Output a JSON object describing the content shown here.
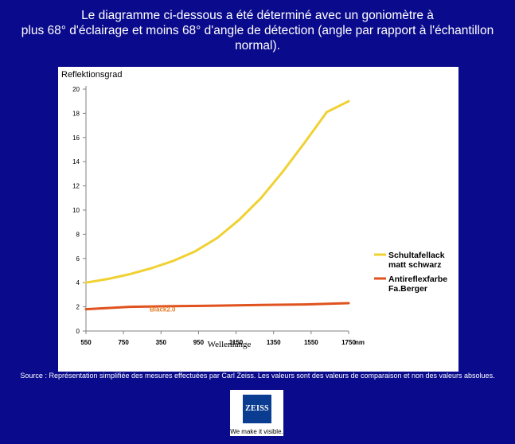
{
  "header": {
    "line1": "Le diagramme ci-dessous a été déterminé avec un goniomètre à",
    "line2": "plus 68° d'éclairage et moins 68° d'angle de détection (angle par rapport à l'échantillon",
    "line3": "normal)."
  },
  "footer": {
    "source": "Source : Représentation simplifiée des mesures effectuées par Carl Zeiss. Les valeurs sont des valeurs de comparaison et non des valeurs absolues."
  },
  "logo": {
    "wordmark": "ZEISS",
    "tagline": "We make it visible."
  },
  "colors": {
    "background": "#0a0a8c",
    "series1": "#f0d133",
    "series2": "#e0521e",
    "annotation": "#e07c28"
  },
  "chart_data": {
    "type": "line",
    "ylabel": "Reflektionsgrad",
    "xlabel": "Wellenlänge",
    "x_unit": "nm",
    "x_tick_labels": [
      "550",
      "750",
      "350",
      "950",
      "1150",
      "1350",
      "1550",
      "1750"
    ],
    "y_ticks": [
      0,
      2,
      4,
      6,
      8,
      10,
      12,
      14,
      16,
      18,
      20
    ],
    "ylim": [
      0,
      20
    ],
    "xlim": [
      550,
      1750
    ],
    "grid": false,
    "legend_position": "right",
    "annotation": {
      "text": "Black2.0",
      "x": 900,
      "y": 1.8
    },
    "series": [
      {
        "name": "Schultafellack matt schwarz",
        "legend_lines": [
          "Schultafellack",
          "matt schwarz"
        ],
        "color": "#f0d133",
        "x": [
          550,
          650,
          750,
          850,
          950,
          1050,
          1150,
          1250,
          1350,
          1450,
          1550,
          1650,
          1750
        ],
        "y": [
          4.0,
          4.3,
          4.7,
          5.2,
          5.8,
          6.6,
          7.7,
          9.2,
          11.0,
          13.2,
          15.6,
          18.1,
          19.0
        ]
      },
      {
        "name": "Antireflexfarbe Fa.Berger",
        "legend_lines": [
          "Antireflexfarbe",
          "Fa.Berger"
        ],
        "color": "#e0521e",
        "x": [
          550,
          650,
          750,
          950,
          1150,
          1350,
          1550,
          1750
        ],
        "y": [
          1.8,
          1.9,
          2.0,
          2.05,
          2.1,
          2.15,
          2.2,
          2.3
        ]
      }
    ]
  }
}
